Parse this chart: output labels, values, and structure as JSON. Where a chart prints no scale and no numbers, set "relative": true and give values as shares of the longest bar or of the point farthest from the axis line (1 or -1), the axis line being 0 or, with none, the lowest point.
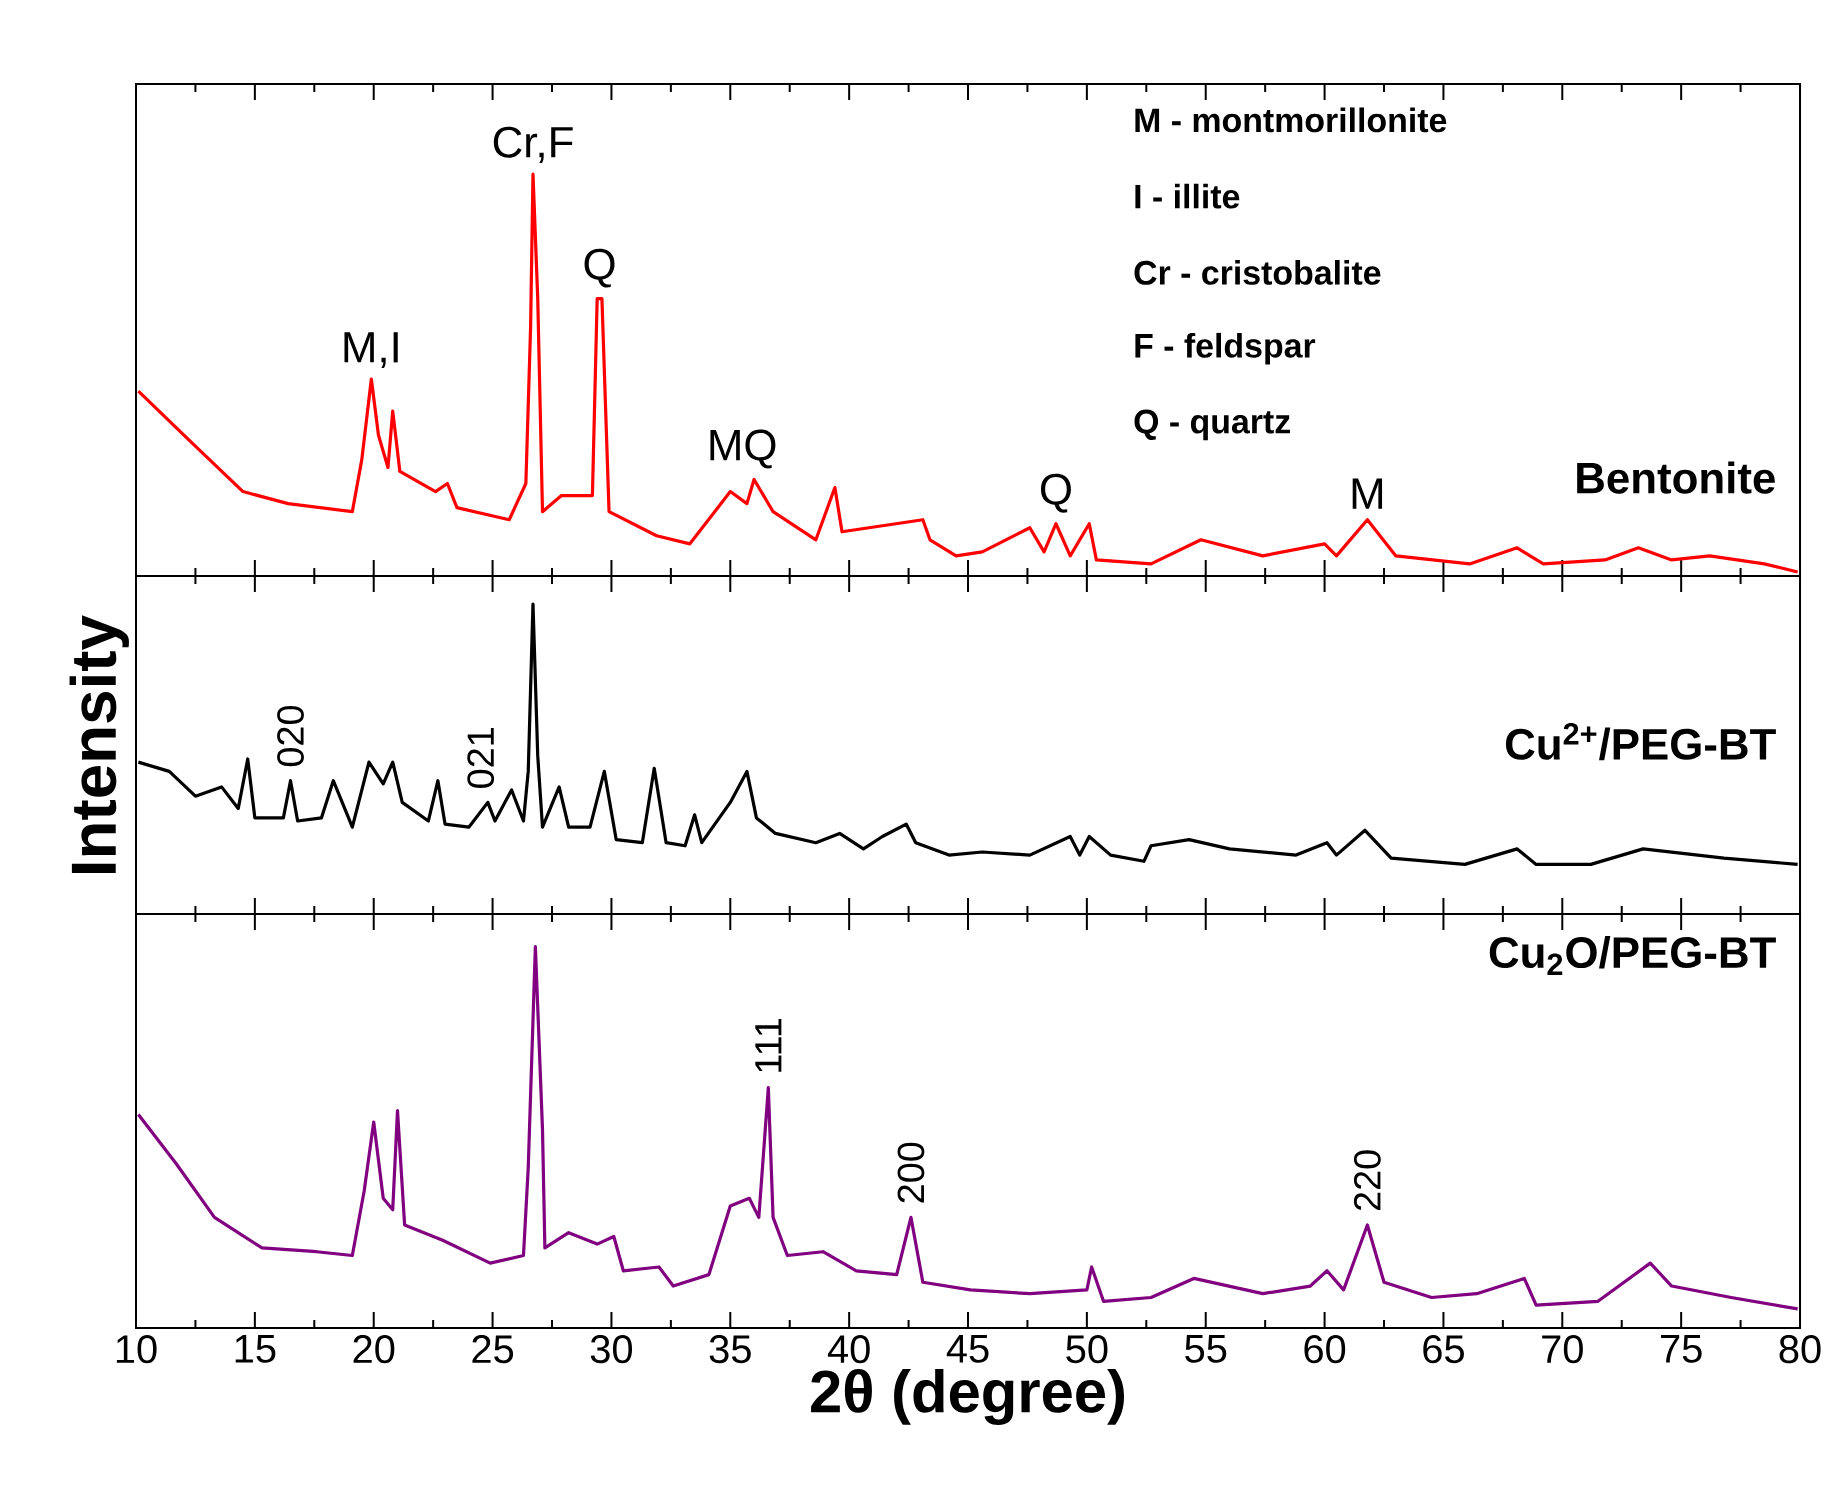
{
  "chart_data": [
    {
      "type": "line",
      "relative": true,
      "xlim": [
        10,
        80
      ],
      "xticks": [
        10,
        15,
        20,
        25,
        30,
        35,
        40,
        45,
        50,
        55,
        60,
        65,
        70,
        75,
        80
      ],
      "tick_labels": false,
      "series": [
        {
          "name": "Bentonite",
          "color": "#ff0000",
          "x": [
            10.1,
            12.2,
            14.5,
            16.4,
            19.1,
            19.5,
            19.9,
            20.2,
            20.6,
            20.8,
            21.1,
            22.6,
            23.1,
            23.5,
            25.7,
            26.4,
            26.6,
            26.7,
            26.9,
            27.1,
            27.9,
            29.2,
            29.4,
            29.6,
            29.9,
            31.9,
            33.3,
            35.0,
            35.7,
            36.0,
            36.8,
            38.6,
            39.4,
            39.7,
            43.1,
            43.4,
            44.5,
            45.6,
            47.6,
            48.2,
            48.7,
            49.3,
            50.1,
            50.4,
            52.7,
            54.8,
            57.4,
            60.0,
            60.5,
            61.8,
            63.0,
            66.1,
            68.1,
            69.2,
            71.8,
            73.2,
            74.6,
            76.2,
            78.5,
            79.9
          ],
          "values": [
            0.46,
            0.34,
            0.21,
            0.18,
            0.16,
            0.29,
            0.49,
            0.35,
            0.27,
            0.41,
            0.26,
            0.21,
            0.23,
            0.17,
            0.14,
            0.23,
            0.62,
            1.0,
            0.69,
            0.16,
            0.2,
            0.2,
            0.69,
            0.69,
            0.16,
            0.1,
            0.08,
            0.21,
            0.18,
            0.24,
            0.16,
            0.09,
            0.22,
            0.11,
            0.14,
            0.09,
            0.05,
            0.06,
            0.12,
            0.06,
            0.13,
            0.05,
            0.13,
            0.04,
            0.03,
            0.09,
            0.05,
            0.08,
            0.05,
            0.14,
            0.05,
            0.03,
            0.07,
            0.03,
            0.04,
            0.07,
            0.04,
            0.05,
            0.03,
            0.01
          ]
        }
      ],
      "annotations": [
        "M - montmorillonite",
        "I - illite",
        "Cr - cristobalite",
        "F - feldspar",
        "Q - quartz",
        {
          "text": "M,I",
          "x": 19.9,
          "y": 0.49
        },
        {
          "text": "Cr,F",
          "x": 26.7,
          "y": 1.0
        },
        {
          "text": "Q",
          "x": 29.5,
          "y": 0.69
        },
        {
          "text": "MQ",
          "x": 35.5,
          "y": 0.24
        },
        {
          "text": "Q",
          "x": 48.7,
          "y": 0.13
        },
        {
          "text": "M",
          "x": 61.8,
          "y": 0.14
        }
      ]
    },
    {
      "type": "line",
      "relative": true,
      "xlim": [
        10,
        80
      ],
      "xticks": [
        10,
        15,
        20,
        25,
        30,
        35,
        40,
        45,
        50,
        55,
        60,
        65,
        70,
        75,
        80
      ],
      "tick_labels": false,
      "ylabel": "Intensity",
      "series": [
        {
          "name": "Cu$^{2+}$/PEG-BT",
          "color": "#000000",
          "x": [
            10.1,
            11.4,
            12.5,
            13.6,
            14.3,
            14.7,
            15.0,
            16.2,
            16.5,
            16.8,
            17.8,
            18.3,
            19.1,
            19.8,
            20.4,
            20.8,
            21.2,
            22.3,
            22.7,
            23.0,
            24.0,
            24.8,
            25.1,
            25.8,
            26.3,
            26.5,
            26.7,
            26.9,
            27.1,
            27.8,
            28.2,
            29.1,
            29.7,
            30.2,
            31.3,
            31.8,
            32.3,
            33.1,
            33.5,
            33.8,
            35.0,
            35.7,
            36.1,
            36.9,
            38.6,
            39.6,
            40.6,
            41.4,
            42.4,
            42.8,
            44.2,
            45.6,
            47.6,
            49.3,
            49.7,
            50.1,
            51.0,
            52.4,
            52.7,
            54.3,
            56.0,
            58.8,
            60.1,
            60.5,
            61.7,
            62.8,
            65.9,
            68.1,
            68.9,
            71.2,
            73.4,
            75.7,
            76.8,
            79.9
          ],
          "values": [
            0.49,
            0.46,
            0.38,
            0.41,
            0.34,
            0.5,
            0.31,
            0.31,
            0.43,
            0.3,
            0.31,
            0.43,
            0.28,
            0.49,
            0.42,
            0.49,
            0.36,
            0.3,
            0.43,
            0.29,
            0.28,
            0.36,
            0.3,
            0.4,
            0.3,
            0.46,
            1.0,
            0.51,
            0.28,
            0.41,
            0.28,
            0.28,
            0.46,
            0.24,
            0.23,
            0.47,
            0.23,
            0.22,
            0.32,
            0.23,
            0.36,
            0.46,
            0.31,
            0.26,
            0.23,
            0.26,
            0.21,
            0.25,
            0.29,
            0.23,
            0.19,
            0.2,
            0.19,
            0.25,
            0.19,
            0.25,
            0.19,
            0.17,
            0.22,
            0.24,
            0.21,
            0.19,
            0.23,
            0.19,
            0.27,
            0.18,
            0.16,
            0.21,
            0.16,
            0.16,
            0.21,
            0.19,
            0.18,
            0.16
          ]
        }
      ],
      "annotations": [
        {
          "text": "020",
          "x": 16.5,
          "y": 0.43
        },
        {
          "text": "021",
          "x": 24.5,
          "y": 0.36
        }
      ]
    },
    {
      "type": "line",
      "relative": true,
      "xlim": [
        10,
        80
      ],
      "xticks": [
        10,
        15,
        20,
        25,
        30,
        35,
        40,
        45,
        50,
        55,
        60,
        65,
        70,
        75,
        80
      ],
      "tick_labels": "x",
      "xlabel": "2θ (degree)",
      "series": [
        {
          "name": "Cu$_{2}$O/PEG-BT",
          "color": "#800080",
          "x": [
            10.1,
            11.7,
            13.3,
            15.3,
            17.6,
            19.1,
            19.6,
            20.0,
            20.4,
            20.8,
            21.0,
            21.3,
            22.9,
            24.9,
            26.3,
            26.5,
            26.8,
            27.1,
            27.2,
            28.2,
            29.4,
            30.1,
            30.5,
            32.0,
            32.6,
            34.1,
            35.0,
            35.8,
            36.2,
            36.4,
            36.6,
            36.8,
            37.4,
            38.9,
            40.3,
            42.0,
            42.6,
            43.1,
            45.1,
            47.6,
            50.0,
            50.2,
            50.7,
            52.7,
            54.5,
            57.4,
            59.4,
            60.1,
            60.8,
            61.8,
            62.5,
            64.5,
            66.4,
            68.4,
            68.9,
            71.5,
            73.7,
            74.6,
            77.1,
            79.9
          ],
          "values": [
            0.56,
            0.43,
            0.29,
            0.21,
            0.2,
            0.19,
            0.36,
            0.54,
            0.34,
            0.31,
            0.57,
            0.27,
            0.23,
            0.17,
            0.19,
            0.42,
            1.0,
            0.52,
            0.21,
            0.25,
            0.22,
            0.24,
            0.15,
            0.16,
            0.11,
            0.14,
            0.32,
            0.34,
            0.29,
            0.46,
            0.63,
            0.29,
            0.19,
            0.2,
            0.15,
            0.14,
            0.29,
            0.12,
            0.1,
            0.09,
            0.1,
            0.16,
            0.07,
            0.08,
            0.13,
            0.09,
            0.11,
            0.15,
            0.1,
            0.27,
            0.12,
            0.08,
            0.09,
            0.13,
            0.06,
            0.07,
            0.17,
            0.11,
            0.08,
            0.05
          ]
        }
      ],
      "annotations": [
        {
          "text": "111",
          "x": 36.6,
          "y": 0.63
        },
        {
          "text": "200",
          "x": 42.6,
          "y": 0.29
        },
        {
          "text": "220",
          "x": 61.8,
          "y": 0.27
        }
      ]
    }
  ]
}
